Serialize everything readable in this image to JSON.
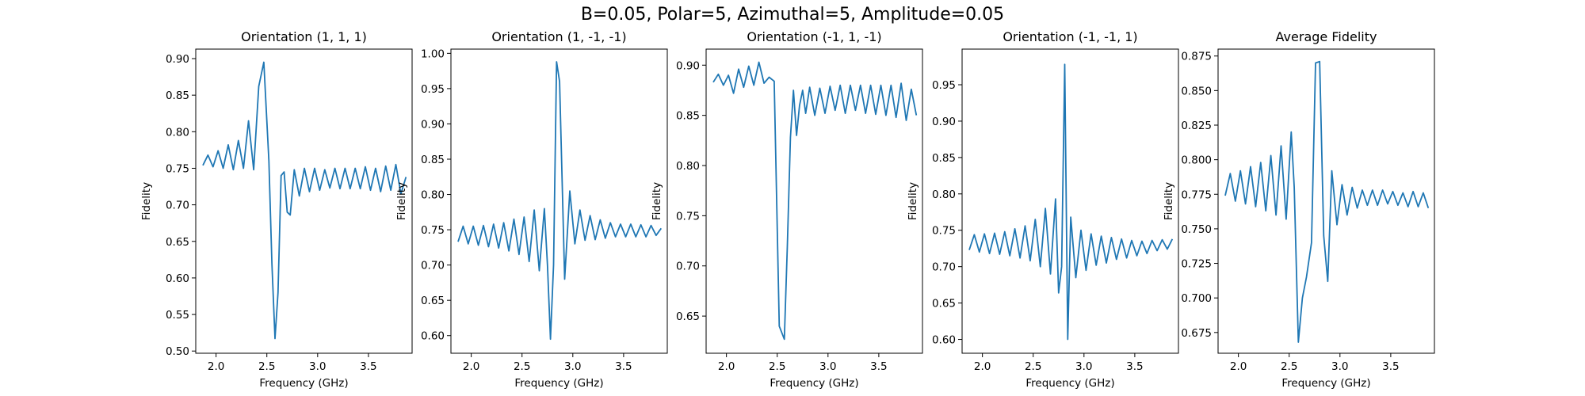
{
  "figure": {
    "title": "B=0.05, Polar=5, Azimuthal=5, Amplitude=0.05"
  },
  "chart_data": [
    {
      "type": "line",
      "title": "Orientation (1, 1, 1)",
      "xlabel": "Frequency (GHz)",
      "ylabel": "Fidelity",
      "xlim": [
        1.8,
        3.93
      ],
      "ylim": [
        0.497,
        0.913
      ],
      "xticks": [
        "2.0",
        "2.5",
        "3.0",
        "3.5"
      ],
      "xtick_values": [
        2.0,
        2.5,
        3.0,
        3.5
      ],
      "yticks": [
        "0.50",
        "0.55",
        "0.60",
        "0.65",
        "0.70",
        "0.75",
        "0.80",
        "0.85",
        "0.90"
      ],
      "ytick_values": [
        0.5,
        0.55,
        0.6,
        0.65,
        0.7,
        0.75,
        0.8,
        0.85,
        0.9
      ],
      "color": "#1f77b4",
      "series": [
        {
          "x": [
            1.87,
            1.92,
            1.97,
            2.02,
            2.07,
            2.12,
            2.17,
            2.22,
            2.27,
            2.32,
            2.37,
            2.42,
            2.47,
            2.52,
            2.55,
            2.58,
            2.61,
            2.64,
            2.67,
            2.7,
            2.73,
            2.77,
            2.82,
            2.87,
            2.92,
            2.97,
            3.02,
            3.07,
            3.12,
            3.17,
            3.22,
            3.27,
            3.32,
            3.37,
            3.42,
            3.47,
            3.52,
            3.57,
            3.62,
            3.67,
            3.72,
            3.77,
            3.82,
            3.87
          ],
          "y": [
            0.754,
            0.768,
            0.752,
            0.774,
            0.75,
            0.782,
            0.748,
            0.788,
            0.75,
            0.815,
            0.748,
            0.862,
            0.895,
            0.76,
            0.62,
            0.517,
            0.58,
            0.74,
            0.745,
            0.69,
            0.686,
            0.748,
            0.712,
            0.75,
            0.718,
            0.75,
            0.72,
            0.748,
            0.723,
            0.75,
            0.722,
            0.75,
            0.722,
            0.75,
            0.722,
            0.752,
            0.72,
            0.75,
            0.718,
            0.753,
            0.72,
            0.755,
            0.715,
            0.738
          ]
        }
      ]
    },
    {
      "type": "line",
      "title": "Orientation (1, -1, -1)",
      "xlabel": "Frequency (GHz)",
      "ylabel": "Fidelity",
      "xlim": [
        1.8,
        3.93
      ],
      "ylim": [
        0.575,
        1.006
      ],
      "xticks": [
        "2.0",
        "2.5",
        "3.0",
        "3.5"
      ],
      "xtick_values": [
        2.0,
        2.5,
        3.0,
        3.5
      ],
      "yticks": [
        "0.60",
        "0.65",
        "0.70",
        "0.75",
        "0.80",
        "0.85",
        "0.90",
        "0.95",
        "1.00"
      ],
      "ytick_values": [
        0.6,
        0.65,
        0.7,
        0.75,
        0.8,
        0.85,
        0.9,
        0.95,
        1.0
      ],
      "color": "#1f77b4",
      "series": [
        {
          "x": [
            1.87,
            1.92,
            1.97,
            2.02,
            2.07,
            2.12,
            2.17,
            2.22,
            2.27,
            2.32,
            2.37,
            2.42,
            2.47,
            2.52,
            2.57,
            2.62,
            2.67,
            2.72,
            2.75,
            2.78,
            2.81,
            2.84,
            2.87,
            2.92,
            2.97,
            3.02,
            3.07,
            3.12,
            3.17,
            3.22,
            3.27,
            3.32,
            3.37,
            3.42,
            3.47,
            3.52,
            3.57,
            3.62,
            3.67,
            3.72,
            3.77,
            3.82,
            3.87
          ],
          "y": [
            0.733,
            0.755,
            0.73,
            0.755,
            0.728,
            0.756,
            0.726,
            0.758,
            0.724,
            0.76,
            0.72,
            0.765,
            0.715,
            0.768,
            0.705,
            0.778,
            0.692,
            0.78,
            0.7,
            0.595,
            0.7,
            0.988,
            0.96,
            0.68,
            0.805,
            0.73,
            0.778,
            0.735,
            0.77,
            0.736,
            0.764,
            0.738,
            0.76,
            0.74,
            0.758,
            0.74,
            0.758,
            0.74,
            0.757,
            0.74,
            0.756,
            0.742,
            0.752
          ]
        }
      ]
    },
    {
      "type": "line",
      "title": "Orientation (-1, 1, -1)",
      "xlabel": "Frequency (GHz)",
      "ylabel": "Fidelity",
      "xlim": [
        1.8,
        3.93
      ],
      "ylim": [
        0.613,
        0.916
      ],
      "xticks": [
        "2.0",
        "2.5",
        "3.0",
        "3.5"
      ],
      "xtick_values": [
        2.0,
        2.5,
        3.0,
        3.5
      ],
      "yticks": [
        "0.65",
        "0.70",
        "0.75",
        "0.80",
        "0.85",
        "0.90"
      ],
      "ytick_values": [
        0.65,
        0.7,
        0.75,
        0.8,
        0.85,
        0.9
      ],
      "color": "#1f77b4",
      "series": [
        {
          "x": [
            1.87,
            1.92,
            1.97,
            2.02,
            2.07,
            2.12,
            2.17,
            2.22,
            2.27,
            2.32,
            2.37,
            2.42,
            2.47,
            2.52,
            2.57,
            2.6,
            2.63,
            2.66,
            2.69,
            2.72,
            2.75,
            2.78,
            2.82,
            2.87,
            2.92,
            2.97,
            3.02,
            3.07,
            3.12,
            3.17,
            3.22,
            3.27,
            3.32,
            3.37,
            3.42,
            3.47,
            3.52,
            3.57,
            3.62,
            3.67,
            3.72,
            3.77,
            3.82,
            3.87
          ],
          "y": [
            0.883,
            0.891,
            0.88,
            0.89,
            0.872,
            0.896,
            0.878,
            0.899,
            0.88,
            0.903,
            0.882,
            0.888,
            0.884,
            0.64,
            0.627,
            0.72,
            0.828,
            0.875,
            0.83,
            0.86,
            0.875,
            0.852,
            0.878,
            0.85,
            0.877,
            0.852,
            0.879,
            0.855,
            0.88,
            0.852,
            0.88,
            0.855,
            0.88,
            0.852,
            0.88,
            0.851,
            0.88,
            0.85,
            0.88,
            0.848,
            0.882,
            0.845,
            0.876,
            0.85
          ]
        }
      ]
    },
    {
      "type": "line",
      "title": "Orientation (-1, -1, 1)",
      "xlabel": "Frequency (GHz)",
      "ylabel": "Fidelity",
      "xlim": [
        1.8,
        3.93
      ],
      "ylim": [
        0.581,
        0.999
      ],
      "xticks": [
        "2.0",
        "2.5",
        "3.0",
        "3.5"
      ],
      "xtick_values": [
        2.0,
        2.5,
        3.0,
        3.5
      ],
      "yticks": [
        "0.60",
        "0.65",
        "0.70",
        "0.75",
        "0.80",
        "0.85",
        "0.90",
        "0.95"
      ],
      "ytick_values": [
        0.6,
        0.65,
        0.7,
        0.75,
        0.8,
        0.85,
        0.9,
        0.95
      ],
      "color": "#1f77b4",
      "series": [
        {
          "x": [
            1.87,
            1.92,
            1.97,
            2.02,
            2.07,
            2.12,
            2.17,
            2.22,
            2.27,
            2.32,
            2.37,
            2.42,
            2.47,
            2.52,
            2.57,
            2.62,
            2.67,
            2.72,
            2.75,
            2.78,
            2.81,
            2.84,
            2.87,
            2.92,
            2.97,
            3.02,
            3.07,
            3.12,
            3.17,
            3.22,
            3.27,
            3.32,
            3.37,
            3.42,
            3.47,
            3.52,
            3.57,
            3.62,
            3.67,
            3.72,
            3.77,
            3.82,
            3.87
          ],
          "y": [
            0.723,
            0.744,
            0.72,
            0.745,
            0.718,
            0.746,
            0.717,
            0.748,
            0.715,
            0.752,
            0.712,
            0.756,
            0.708,
            0.765,
            0.7,
            0.78,
            0.69,
            0.793,
            0.664,
            0.7,
            0.978,
            0.6,
            0.768,
            0.685,
            0.75,
            0.695,
            0.745,
            0.702,
            0.742,
            0.705,
            0.74,
            0.71,
            0.738,
            0.712,
            0.736,
            0.715,
            0.735,
            0.718,
            0.736,
            0.722,
            0.737,
            0.724,
            0.738
          ]
        }
      ]
    },
    {
      "type": "line",
      "title": "Average Fidelity",
      "xlabel": "Frequency (GHz)",
      "ylabel": "Fidelity",
      "xlim": [
        1.8,
        3.93
      ],
      "ylim": [
        0.66,
        0.88
      ],
      "xticks": [
        "2.0",
        "2.5",
        "3.0",
        "3.5"
      ],
      "xtick_values": [
        2.0,
        2.5,
        3.0,
        3.5
      ],
      "yticks": [
        "0.675",
        "0.700",
        "0.725",
        "0.750",
        "0.775",
        "0.800",
        "0.825",
        "0.850",
        "0.875"
      ],
      "ytick_values": [
        0.675,
        0.7,
        0.725,
        0.75,
        0.775,
        0.8,
        0.825,
        0.85,
        0.875
      ],
      "color": "#1f77b4",
      "series": [
        {
          "x": [
            1.87,
            1.92,
            1.97,
            2.02,
            2.07,
            2.12,
            2.17,
            2.22,
            2.27,
            2.32,
            2.37,
            2.42,
            2.47,
            2.52,
            2.55,
            2.59,
            2.63,
            2.67,
            2.72,
            2.76,
            2.8,
            2.84,
            2.88,
            2.92,
            2.97,
            3.02,
            3.07,
            3.12,
            3.17,
            3.22,
            3.27,
            3.32,
            3.37,
            3.42,
            3.47,
            3.52,
            3.57,
            3.62,
            3.67,
            3.72,
            3.77,
            3.82,
            3.87
          ],
          "y": [
            0.774,
            0.79,
            0.77,
            0.792,
            0.768,
            0.795,
            0.766,
            0.798,
            0.763,
            0.803,
            0.76,
            0.81,
            0.757,
            0.82,
            0.78,
            0.668,
            0.7,
            0.715,
            0.74,
            0.87,
            0.871,
            0.745,
            0.712,
            0.792,
            0.753,
            0.782,
            0.76,
            0.78,
            0.765,
            0.778,
            0.767,
            0.778,
            0.767,
            0.778,
            0.768,
            0.777,
            0.767,
            0.776,
            0.766,
            0.777,
            0.766,
            0.776,
            0.765
          ]
        }
      ]
    }
  ]
}
